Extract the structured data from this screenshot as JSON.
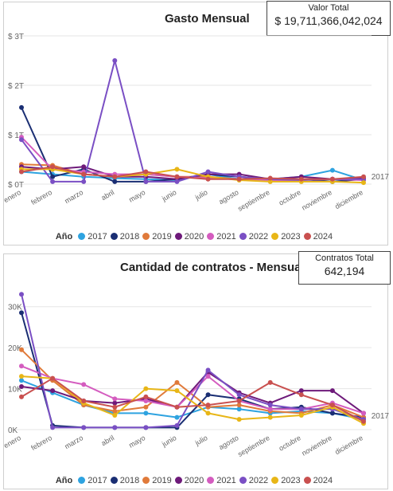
{
  "colors": {
    "2017": "#2ea3e0",
    "2018": "#1a2e73",
    "2019": "#e07a3a",
    "2020": "#6e1a7a",
    "2021": "#d45cbf",
    "2022": "#7a4fc4",
    "2023": "#e8b617",
    "2024": "#c9504f"
  },
  "panel1": {
    "title": "Gasto Mensual",
    "kpi_label": "Valor Total",
    "kpi_value": "$ 19,711,366,042,024",
    "side_label": "2017"
  },
  "panel2": {
    "title": "Cantidad de contratos - Mensual",
    "kpi_label": "Contratos Total",
    "kpi_value": "642,194",
    "side_label": "2017"
  },
  "legend_title": "Año",
  "chart_data": [
    {
      "type": "line",
      "title": "Gasto Mensual",
      "categories": [
        "enero",
        "febrero",
        "marzo",
        "abril",
        "mayo",
        "junio",
        "julio",
        "agosto",
        "septiembre",
        "octubre",
        "noviembre",
        "diciembre"
      ],
      "ylim": [
        0,
        3
      ],
      "yticks": [
        0,
        1,
        2,
        3
      ],
      "ytick_labels": [
        "$ 0T",
        "$ 1T",
        "$ 2T",
        "$ 3T"
      ],
      "series": [
        {
          "name": "2017",
          "values": [
            0.25,
            0.2,
            0.15,
            0.12,
            0.1,
            0.08,
            0.2,
            0.1,
            0.1,
            0.15,
            0.28,
            0.08
          ]
        },
        {
          "name": "2018",
          "values": [
            1.55,
            0.15,
            0.3,
            0.05,
            0.05,
            0.1,
            0.2,
            0.15,
            0.1,
            0.1,
            0.05,
            0.1
          ]
        },
        {
          "name": "2019",
          "values": [
            0.4,
            0.38,
            0.2,
            0.15,
            0.2,
            0.15,
            0.15,
            0.1,
            0.1,
            0.1,
            0.1,
            0.1
          ]
        },
        {
          "name": "2020",
          "values": [
            0.35,
            0.3,
            0.35,
            0.15,
            0.15,
            0.1,
            0.2,
            0.2,
            0.1,
            0.15,
            0.1,
            0.12
          ]
        },
        {
          "name": "2021",
          "values": [
            0.95,
            0.3,
            0.25,
            0.2,
            0.2,
            0.15,
            0.12,
            0.1,
            0.08,
            0.08,
            0.1,
            0.08
          ]
        },
        {
          "name": "2022",
          "values": [
            0.9,
            0.05,
            0.05,
            2.5,
            0.05,
            0.05,
            0.25,
            0.15,
            0.1,
            0.08,
            0.1,
            0.1
          ]
        },
        {
          "name": "2023",
          "values": [
            0.3,
            0.3,
            0.2,
            0.15,
            0.2,
            0.3,
            0.15,
            0.08,
            0.05,
            0.05,
            0.05,
            0.03
          ]
        },
        {
          "name": "2024",
          "values": [
            0.25,
            0.35,
            0.2,
            0.15,
            0.25,
            0.15,
            0.1,
            0.1,
            0.12,
            0.1,
            0.1,
            0.15
          ]
        }
      ]
    },
    {
      "type": "line",
      "title": "Cantidad de contratos - Mensual",
      "categories": [
        "enero",
        "febrero",
        "marzo",
        "abril",
        "mayo",
        "junio",
        "julio",
        "agosto",
        "septiembre",
        "octubre",
        "noviembre",
        "diciembre"
      ],
      "ylim": [
        0,
        35000
      ],
      "yticks": [
        0,
        10000,
        20000,
        30000
      ],
      "ytick_labels": [
        "0K",
        "10K",
        "20K",
        "30K"
      ],
      "series": [
        {
          "name": "2017",
          "values": [
            12000,
            9000,
            6000,
            4000,
            4000,
            3000,
            5500,
            5000,
            4000,
            4500,
            4000,
            2500
          ]
        },
        {
          "name": "2018",
          "values": [
            28500,
            1000,
            500,
            500,
            500,
            500,
            8500,
            7500,
            5000,
            5500,
            4000,
            3000
          ]
        },
        {
          "name": "2019",
          "values": [
            19500,
            12000,
            6000,
            4500,
            5500,
            11500,
            5500,
            6000,
            4500,
            4000,
            6000,
            3000
          ]
        },
        {
          "name": "2020",
          "values": [
            10500,
            9500,
            7000,
            6500,
            7500,
            5500,
            14000,
            9000,
            6500,
            9500,
            9500,
            4000
          ]
        },
        {
          "name": "2021",
          "values": [
            15500,
            12500,
            11000,
            7500,
            7000,
            5500,
            13000,
            7000,
            5000,
            5000,
            6500,
            4000
          ]
        },
        {
          "name": "2022",
          "values": [
            33000,
            500,
            500,
            500,
            500,
            1000,
            14500,
            8500,
            6000,
            5000,
            5000,
            2500
          ]
        },
        {
          "name": "2023",
          "values": [
            13000,
            12500,
            6500,
            3500,
            10000,
            9500,
            4000,
            2500,
            3000,
            3500,
            5500,
            1500
          ]
        },
        {
          "name": "2024",
          "values": [
            8000,
            12500,
            7000,
            5500,
            8000,
            5500,
            6000,
            7000,
            11500,
            8500,
            6000,
            2000
          ]
        }
      ]
    }
  ]
}
